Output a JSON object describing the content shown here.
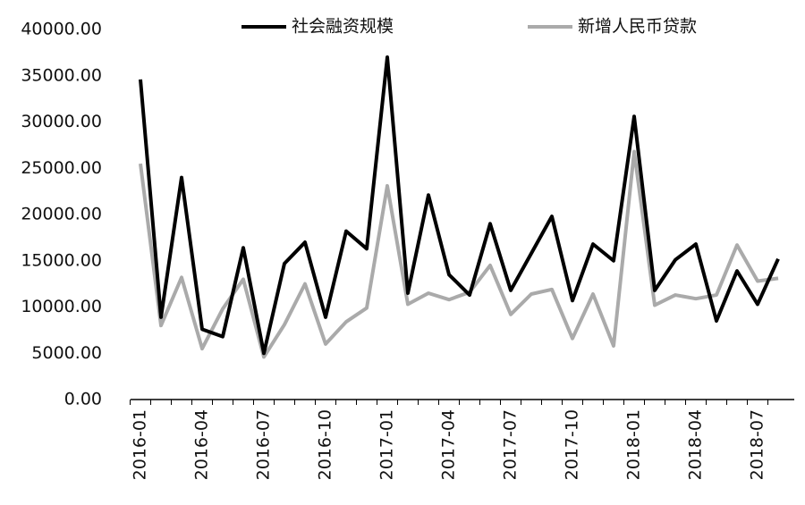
{
  "chart_data": {
    "type": "line",
    "categories": [
      "2016-01",
      null,
      null,
      "2016-04",
      null,
      null,
      "2016-07",
      null,
      null,
      "2016-10",
      null,
      null,
      "2017-01",
      null,
      null,
      "2017-04",
      null,
      null,
      "2017-07",
      null,
      null,
      "2017-10",
      null,
      null,
      "2018-01",
      null,
      null,
      "2018-04",
      null,
      null,
      "2018-07",
      null
    ],
    "series": [
      {
        "name": "社会融资规模",
        "color": "#000000",
        "values": [
          34600,
          8900,
          24000,
          7600,
          6800,
          16400,
          5000,
          14700,
          17000,
          8900,
          18200,
          16300,
          37000,
          11500,
          22100,
          13500,
          11300,
          19000,
          11800,
          15800,
          19800,
          10700,
          16800,
          15000,
          30600,
          11800,
          15100,
          16800,
          8500,
          13900,
          10300,
          15200
        ]
      },
      {
        "name": "新增人民币贷款",
        "color": "#aaaaaa",
        "values": [
          25500,
          8000,
          13200,
          5500,
          9800,
          13000,
          4600,
          8100,
          12500,
          6000,
          8400,
          9900,
          23100,
          10300,
          11500,
          10800,
          11600,
          14500,
          9200,
          11400,
          11900,
          6600,
          11400,
          5800,
          26800,
          10200,
          11300,
          10900,
          11300,
          16700,
          12800,
          13100
        ]
      }
    ],
    "ylim": [
      0,
      40000
    ],
    "yticks": [
      {
        "value": 0,
        "label": "0.00"
      },
      {
        "value": 5000,
        "label": "5000.00"
      },
      {
        "value": 10000,
        "label": "10000.00"
      },
      {
        "value": 15000,
        "label": "15000.00"
      },
      {
        "value": 20000,
        "label": "20000.00"
      },
      {
        "value": 25000,
        "label": "25000.00"
      },
      {
        "value": 30000,
        "label": "30000.00"
      },
      {
        "value": 35000,
        "label": "35000.00"
      },
      {
        "value": 40000,
        "label": "40000.00"
      }
    ],
    "grid": false
  }
}
